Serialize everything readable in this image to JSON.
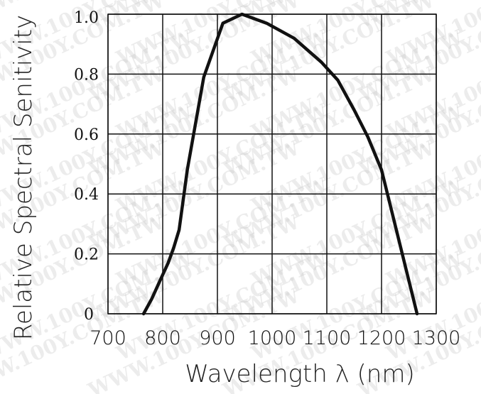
{
  "chart_data": {
    "type": "line",
    "title": "",
    "xlabel": "Wavelength λ (nm)",
    "ylabel": "Relative Spectral Senitivity",
    "xlim": [
      700,
      1300
    ],
    "ylim": [
      0,
      1.0
    ],
    "x_ticks": [
      "700",
      "800",
      "900",
      "1000",
      "1100",
      "1200",
      "1300"
    ],
    "y_ticks": [
      "0",
      "0.2",
      "0.4",
      "0.6",
      "0.8",
      "1.0"
    ],
    "grid": true,
    "series": [
      {
        "x": [
          765,
          780,
          795,
          810,
          820,
          830,
          845,
          875,
          910,
          945,
          990,
          1040,
          1090,
          1120,
          1150,
          1175,
          1200,
          1265
        ],
        "y": [
          0.0,
          0.05,
          0.11,
          0.17,
          0.22,
          0.28,
          0.48,
          0.79,
          0.97,
          1.0,
          0.97,
          0.92,
          0.84,
          0.78,
          0.68,
          0.59,
          0.48,
          0.0
        ]
      }
    ],
    "colors": {
      "curve": "#111111",
      "grid": "#111111"
    }
  },
  "watermark": "WWW.100Y.COM.TW"
}
